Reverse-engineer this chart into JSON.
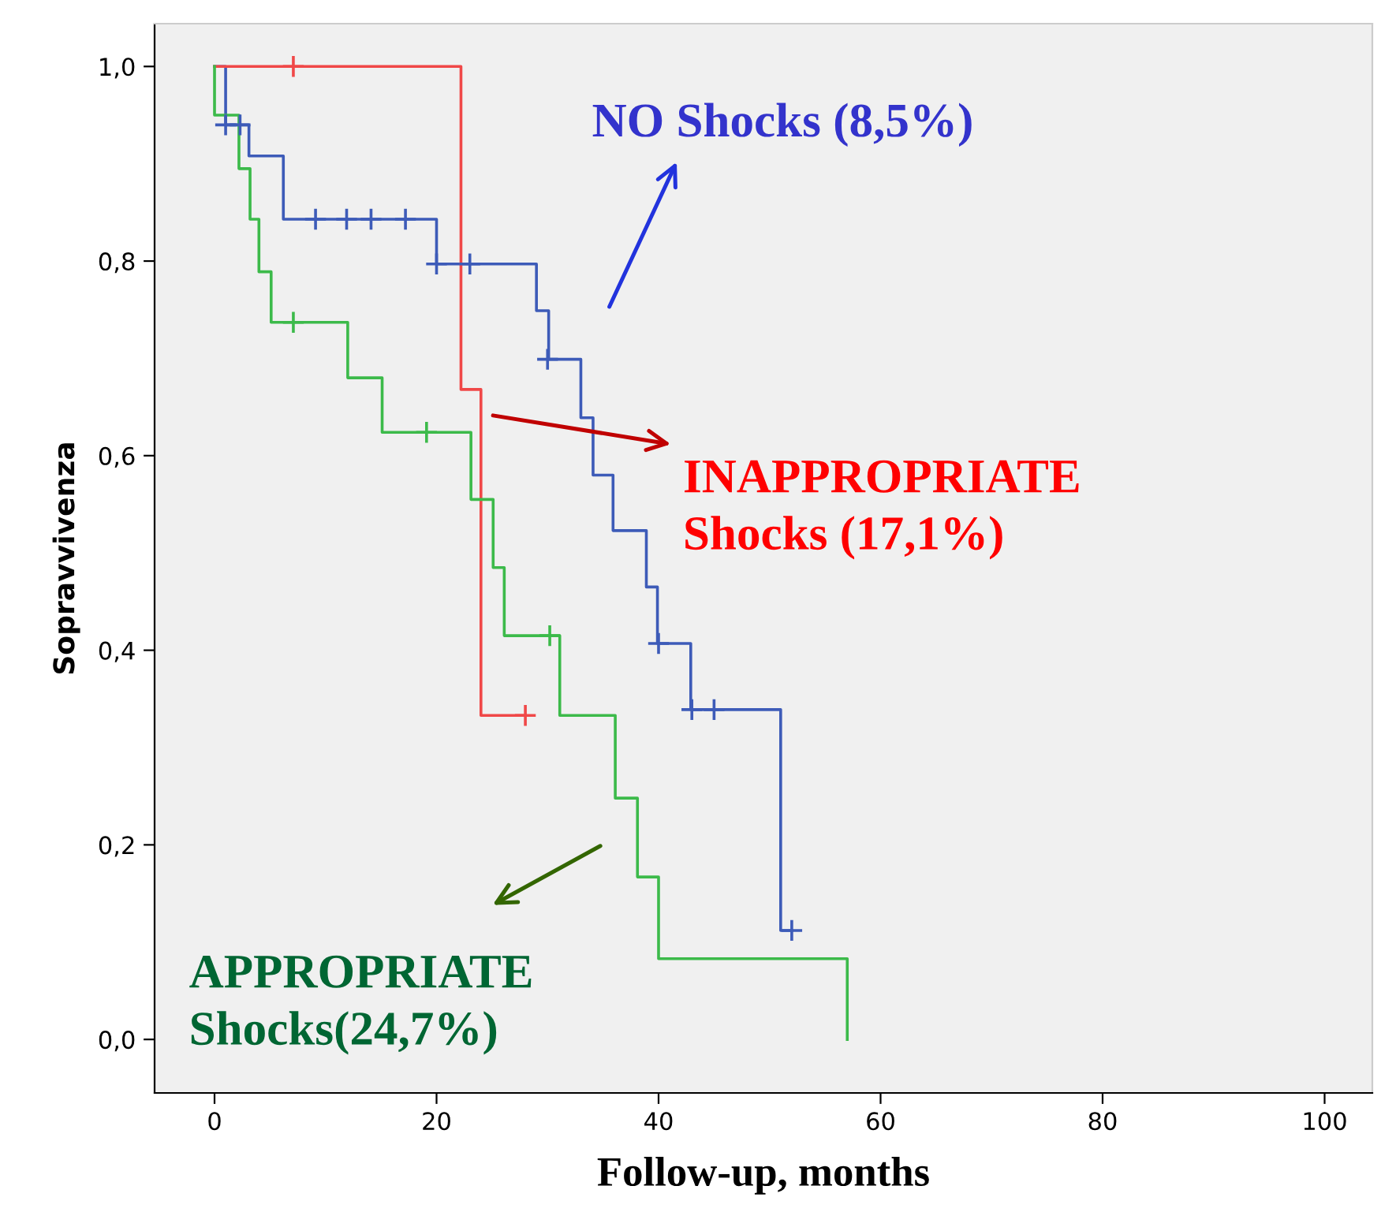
{
  "chart_data": {
    "type": "step",
    "xlabel": "Follow-up, months",
    "ylabel": "Sopravvivenza",
    "xlim": [
      -5.4,
      104.3
    ],
    "ylim": [
      -0.055,
      1.044
    ],
    "xticks": [
      0,
      20,
      40,
      60,
      80,
      100
    ],
    "yticks": [
      {
        "value": 0,
        "label": "0,0"
      },
      {
        "value": 0.2,
        "label": "0,2"
      },
      {
        "value": 0.4,
        "label": "0,4"
      },
      {
        "value": 0.6,
        "label": "0,6"
      },
      {
        "value": 0.8,
        "label": "0,8"
      },
      {
        "value": 1.0,
        "label": "1,0"
      }
    ],
    "grid": false,
    "legend": false,
    "series": [
      {
        "color": "#3d5bb8",
        "x": [
          0,
          1.0,
          3.1,
          6.2,
          20,
          29,
          30.1,
          33,
          34.1,
          35.9,
          38.9,
          39.9,
          42.9,
          51,
          52
        ],
        "values": [
          1.0,
          0.94,
          0.908,
          0.843,
          0.797,
          0.749,
          0.699,
          0.639,
          0.58,
          0.523,
          0.465,
          0.407,
          0.339,
          0.112,
          0.112
        ]
      },
      {
        "color": "#f04848",
        "x": [
          0,
          22.2,
          24,
          28
        ],
        "values": [
          1.0,
          0.668,
          0.333,
          0.333
        ]
      },
      {
        "color": "#3cba4a",
        "x": [
          0,
          0,
          2.2,
          3.2,
          4.0,
          5.1,
          12.0,
          15.1,
          23.1,
          25.1,
          26.1,
          31.1,
          36.1,
          38.1,
          40,
          57,
          57
        ],
        "values": [
          1.0,
          0.95,
          0.895,
          0.843,
          0.789,
          0.737,
          0.68,
          0.624,
          0.555,
          0.485,
          0.415,
          0.333,
          0.248,
          0.167,
          0.083,
          0.083,
          0
        ]
      },
      {
        "type": "scatter",
        "marker": "cross",
        "color": "#3d5bb8",
        "x": [
          1,
          2.3,
          9.1,
          11.9,
          14.1,
          17.2,
          20,
          23,
          30,
          40,
          43,
          45,
          52
        ],
        "values": [
          0.94,
          0.94,
          0.843,
          0.843,
          0.843,
          0.843,
          0.797,
          0.797,
          0.699,
          0.407,
          0.339,
          0.339,
          0.112
        ]
      },
      {
        "type": "scatter",
        "marker": "cross",
        "color": "#f04848",
        "x": [
          7.1,
          28
        ],
        "values": [
          1.0,
          0.333
        ]
      },
      {
        "type": "scatter",
        "marker": "cross",
        "color": "#3cba4a",
        "x": [
          7.1,
          19.1,
          30.2
        ],
        "values": [
          0.737,
          0.624,
          0.415
        ]
      }
    ],
    "annotations": [
      "NO Shocks (8,5%)",
      "INAPPROPRIATE\nShocks (17,1%)",
      "APPROPRIATE\nShocks(24,7%)"
    ]
  }
}
